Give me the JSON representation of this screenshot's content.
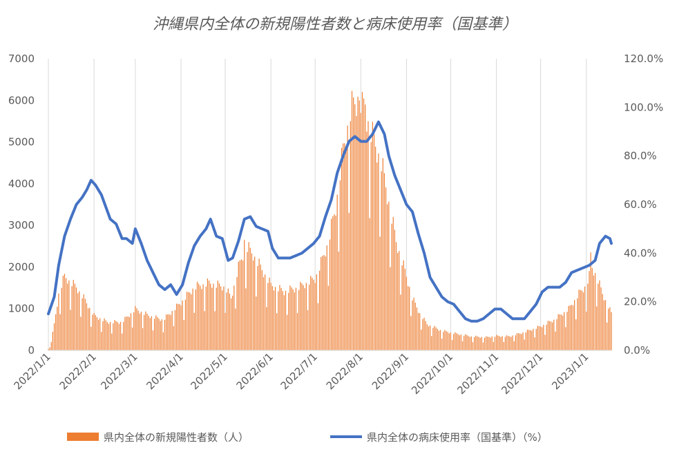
{
  "chart_data": {
    "type": "bar+line",
    "title": "沖縄県内全体の新規陽性者数と病床使用率（国基準）",
    "x_tick_labels": [
      "2022/1/1",
      "2022/2/1",
      "2022/3/1",
      "2022/4/1",
      "2022/5/1",
      "2022/6/1",
      "2022/7/1",
      "2022/8/1",
      "2022/9/1",
      "2022/10/1",
      "2022/11/1",
      "2022/12/1",
      "2023/1/1"
    ],
    "y_left_ticks": [
      "0",
      "1000",
      "2000",
      "3000",
      "4000",
      "5000",
      "6000",
      "7000"
    ],
    "y_right_ticks": [
      "0.0%",
      "20.0%",
      "40.0%",
      "60.0%",
      "80.0%",
      "100.0%",
      "120.0%"
    ],
    "ylim_left": [
      0,
      7000
    ],
    "ylim_right": [
      0,
      120
    ],
    "grid": "vertical",
    "legend_position": "bottom",
    "x_start": "2022-01-01",
    "x_end": "2023-01-18",
    "series": [
      {
        "name": "県内全体の新規陽性者数（人）",
        "type": "bar",
        "axis": "left",
        "color": "#ED7D31",
        "keypoints": [
          [
            "2022-01-01",
            30
          ],
          [
            "2022-01-03",
            200
          ],
          [
            "2022-01-05",
            600
          ],
          [
            "2022-01-08",
            1300
          ],
          [
            "2022-01-12",
            1700
          ],
          [
            "2022-01-15",
            1600
          ],
          [
            "2022-01-20",
            1450
          ],
          [
            "2022-01-25",
            1200
          ],
          [
            "2022-02-01",
            800
          ],
          [
            "2022-02-10",
            650
          ],
          [
            "2022-02-20",
            650
          ],
          [
            "2022-03-01",
            950
          ],
          [
            "2022-03-10",
            800
          ],
          [
            "2022-03-20",
            700
          ],
          [
            "2022-04-01",
            1100
          ],
          [
            "2022-04-10",
            1450
          ],
          [
            "2022-04-20",
            1550
          ],
          [
            "2022-05-01",
            1450
          ],
          [
            "2022-05-05",
            1200
          ],
          [
            "2022-05-10",
            1900
          ],
          [
            "2022-05-15",
            2400
          ],
          [
            "2022-05-20",
            2200
          ],
          [
            "2022-06-01",
            1500
          ],
          [
            "2022-06-10",
            1350
          ],
          [
            "2022-06-20",
            1450
          ],
          [
            "2022-07-01",
            1650
          ],
          [
            "2022-07-05",
            2000
          ],
          [
            "2022-07-10",
            2500
          ],
          [
            "2022-07-15",
            3300
          ],
          [
            "2022-07-20",
            4600
          ],
          [
            "2022-07-25",
            5500
          ],
          [
            "2022-07-30",
            5800
          ],
          [
            "2022-08-03",
            5600
          ],
          [
            "2022-08-08",
            5000
          ],
          [
            "2022-08-15",
            4300
          ],
          [
            "2022-08-20",
            3400
          ],
          [
            "2022-08-25",
            2500
          ],
          [
            "2022-09-01",
            1700
          ],
          [
            "2022-09-05",
            1200
          ],
          [
            "2022-09-10",
            850
          ],
          [
            "2022-09-15",
            600
          ],
          [
            "2022-09-25",
            450
          ],
          [
            "2022-10-05",
            380
          ],
          [
            "2022-10-15",
            320
          ],
          [
            "2022-10-25",
            300
          ],
          [
            "2022-11-01",
            330
          ],
          [
            "2022-11-10",
            320
          ],
          [
            "2022-11-20",
            420
          ],
          [
            "2022-12-01",
            550
          ],
          [
            "2022-12-10",
            700
          ],
          [
            "2022-12-20",
            950
          ],
          [
            "2022-12-27",
            1300
          ],
          [
            "2023-01-01",
            1500
          ],
          [
            "2023-01-05",
            1900
          ],
          [
            "2023-01-08",
            1700
          ],
          [
            "2023-01-12",
            1300
          ],
          [
            "2023-01-18",
            850
          ]
        ],
        "peaks": [
          [
            "2022-07-31",
            6000
          ],
          [
            "2022-08-02",
            6200
          ],
          [
            "2022-08-04",
            5900
          ],
          [
            "2022-05-14",
            2650
          ],
          [
            "2023-01-04",
            2350
          ]
        ]
      },
      {
        "name": "県内全体の病床使用率（国基準）（%）",
        "type": "line",
        "axis": "right",
        "color": "#4472C4",
        "points": [
          [
            "2022-01-01",
            15
          ],
          [
            "2022-01-05",
            22
          ],
          [
            "2022-01-08",
            35
          ],
          [
            "2022-01-12",
            47
          ],
          [
            "2022-01-16",
            54
          ],
          [
            "2022-01-20",
            60
          ],
          [
            "2022-01-24",
            63
          ],
          [
            "2022-01-27",
            66
          ],
          [
            "2022-01-30",
            70
          ],
          [
            "2022-02-02",
            68
          ],
          [
            "2022-02-06",
            64
          ],
          [
            "2022-02-09",
            59
          ],
          [
            "2022-02-12",
            54
          ],
          [
            "2022-02-16",
            52
          ],
          [
            "2022-02-20",
            46
          ],
          [
            "2022-02-23",
            46
          ],
          [
            "2022-02-27",
            44
          ],
          [
            "2022-03-01",
            50
          ],
          [
            "2022-03-05",
            44
          ],
          [
            "2022-03-09",
            37
          ],
          [
            "2022-03-13",
            32
          ],
          [
            "2022-03-17",
            27
          ],
          [
            "2022-03-21",
            25
          ],
          [
            "2022-03-25",
            27
          ],
          [
            "2022-03-29",
            23
          ],
          [
            "2022-04-02",
            27
          ],
          [
            "2022-04-06",
            36
          ],
          [
            "2022-04-10",
            43
          ],
          [
            "2022-04-14",
            47
          ],
          [
            "2022-04-18",
            50
          ],
          [
            "2022-04-21",
            54
          ],
          [
            "2022-04-25",
            47
          ],
          [
            "2022-04-29",
            46
          ],
          [
            "2022-05-03",
            37
          ],
          [
            "2022-05-06",
            38
          ],
          [
            "2022-05-10",
            45
          ],
          [
            "2022-05-14",
            54
          ],
          [
            "2022-05-18",
            55
          ],
          [
            "2022-05-22",
            51
          ],
          [
            "2022-05-26",
            50
          ],
          [
            "2022-05-30",
            49
          ],
          [
            "2022-06-02",
            42
          ],
          [
            "2022-06-06",
            38
          ],
          [
            "2022-06-10",
            38
          ],
          [
            "2022-06-14",
            38
          ],
          [
            "2022-06-18",
            39
          ],
          [
            "2022-06-22",
            40
          ],
          [
            "2022-06-26",
            42
          ],
          [
            "2022-06-30",
            44
          ],
          [
            "2022-07-04",
            47
          ],
          [
            "2022-07-08",
            55
          ],
          [
            "2022-07-12",
            62
          ],
          [
            "2022-07-16",
            73
          ],
          [
            "2022-07-20",
            80
          ],
          [
            "2022-07-24",
            86
          ],
          [
            "2022-07-28",
            88
          ],
          [
            "2022-08-01",
            86
          ],
          [
            "2022-08-05",
            86
          ],
          [
            "2022-08-09",
            89
          ],
          [
            "2022-08-13",
            94
          ],
          [
            "2022-08-17",
            89
          ],
          [
            "2022-08-20",
            80
          ],
          [
            "2022-08-24",
            72
          ],
          [
            "2022-08-28",
            66
          ],
          [
            "2022-09-01",
            60
          ],
          [
            "2022-09-05",
            57
          ],
          [
            "2022-09-09",
            48
          ],
          [
            "2022-09-13",
            40
          ],
          [
            "2022-09-17",
            30
          ],
          [
            "2022-09-21",
            26
          ],
          [
            "2022-09-25",
            22
          ],
          [
            "2022-09-29",
            20
          ],
          [
            "2022-10-03",
            19
          ],
          [
            "2022-10-07",
            16
          ],
          [
            "2022-10-11",
            13
          ],
          [
            "2022-10-15",
            12
          ],
          [
            "2022-10-19",
            12
          ],
          [
            "2022-10-23",
            13
          ],
          [
            "2022-10-27",
            15
          ],
          [
            "2022-10-31",
            17
          ],
          [
            "2022-11-04",
            17
          ],
          [
            "2022-11-08",
            15
          ],
          [
            "2022-11-12",
            13
          ],
          [
            "2022-11-16",
            13
          ],
          [
            "2022-11-20",
            13
          ],
          [
            "2022-11-24",
            16
          ],
          [
            "2022-11-28",
            19
          ],
          [
            "2022-12-02",
            24
          ],
          [
            "2022-12-06",
            26
          ],
          [
            "2022-12-10",
            26
          ],
          [
            "2022-12-14",
            26
          ],
          [
            "2022-12-18",
            28
          ],
          [
            "2022-12-22",
            32
          ],
          [
            "2022-12-26",
            33
          ],
          [
            "2022-12-30",
            34
          ],
          [
            "2023-01-03",
            35
          ],
          [
            "2023-01-07",
            37
          ],
          [
            "2023-01-10",
            44
          ],
          [
            "2023-01-14",
            47
          ],
          [
            "2023-01-17",
            46
          ],
          [
            "2023-01-18",
            44
          ]
        ]
      }
    ]
  },
  "colors": {
    "grid": "#D9D9D9",
    "axis_text": "#595959",
    "bar": "#ED7D31",
    "line": "#4472C4"
  }
}
